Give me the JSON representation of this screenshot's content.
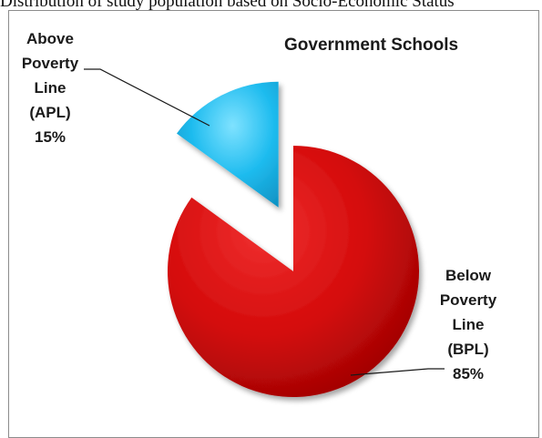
{
  "caption": "Distribution of study population based on Socio-Economic Status",
  "chart_data": {
    "type": "pie",
    "title": "Government Schools",
    "slices": [
      {
        "label_lines": [
          "Above",
          "Poverty",
          "Line",
          "(APL)"
        ],
        "value": 15,
        "value_text": "15%",
        "color": "#1fbcef",
        "exploded": true
      },
      {
        "label_lines": [
          "Below",
          "Poverty",
          "Line",
          "(BPL)"
        ],
        "value": 85,
        "value_text": "85%",
        "color": "#d40b0b",
        "exploded": false
      }
    ],
    "legend": "none",
    "grid": false
  }
}
